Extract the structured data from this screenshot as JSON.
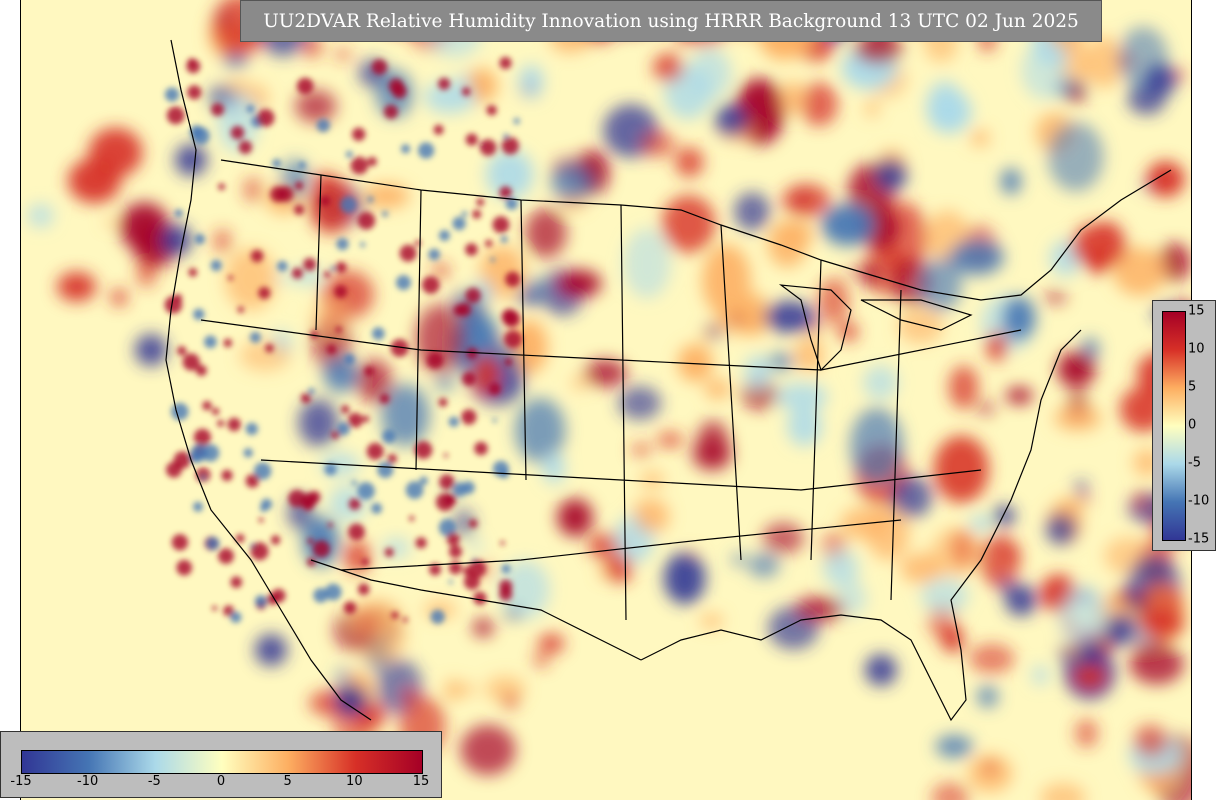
{
  "title": "UU2DVAR Relative Humidity Innovation using HRRR Background 13 UTC 02 Jun 2025",
  "colorbar": {
    "min": -15,
    "max": 15,
    "horizontal_ticks": [
      "-15",
      "-10",
      "-5",
      "0",
      "5",
      "10",
      "15"
    ],
    "vertical_ticks": [
      "15",
      "10",
      "5",
      "0",
      "-5",
      "-10",
      "-15"
    ],
    "colors": {
      "strong_negative": "#313695",
      "negative": "#4575b4",
      "weak_negative": "#abd9e9",
      "neutral": "#ffffbf",
      "weak_positive": "#fdae61",
      "positive": "#d73027",
      "strong_positive": "#a50026"
    }
  },
  "map": {
    "projection": "Lambert conformal (CONUS)",
    "background_color": "#fff8c0",
    "boundaries": "state and national borders, coastlines, black lines"
  }
}
